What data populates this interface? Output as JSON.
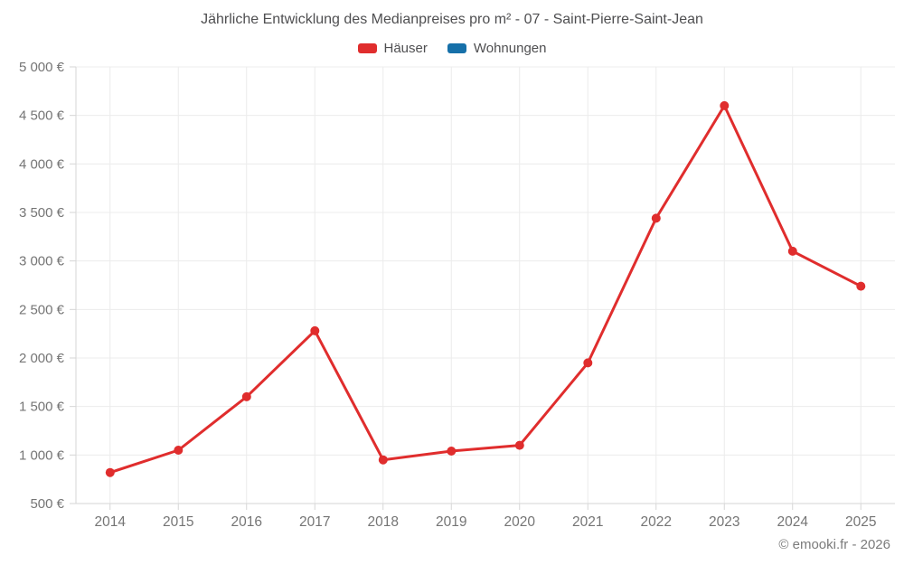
{
  "chart_data": {
    "type": "line",
    "title": "Jährliche Entwicklung des Medianpreises pro m² - 07 - Saint-Pierre-Saint-Jean",
    "categories": [
      "2014",
      "2015",
      "2016",
      "2017",
      "2018",
      "2019",
      "2020",
      "2021",
      "2022",
      "2023",
      "2024",
      "2025"
    ],
    "series": [
      {
        "name": "Häuser",
        "color": "#e02d2d",
        "values": [
          820,
          1050,
          1600,
          2280,
          950,
          1040,
          1100,
          1950,
          3440,
          4600,
          3100,
          2740
        ]
      },
      {
        "name": "Wohnungen",
        "color": "#1670a9",
        "values": []
      }
    ],
    "xlabel": "",
    "ylabel": "",
    "ylim": [
      500,
      5000
    ],
    "y_tick_step": 500,
    "y_tick_suffix": " €",
    "grid": true,
    "legend_position": "top",
    "marker": "circle",
    "line_width": 3,
    "marker_radius": 5
  },
  "footer": {
    "credit": "© emooki.fr - 2026"
  },
  "colors": {
    "background": "#ffffff",
    "grid": "#ececec",
    "axis": "#d6d6d6",
    "tick_label": "#757575",
    "title_text": "#4f4f51"
  }
}
